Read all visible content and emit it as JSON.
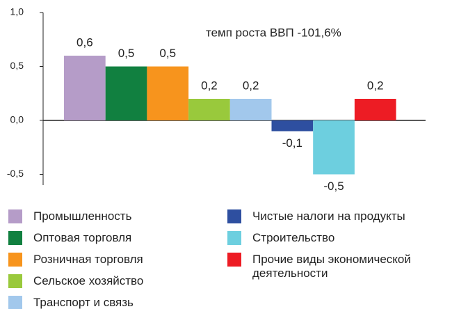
{
  "chart_data": {
    "type": "bar",
    "annotation": "темп  роста ВВП -101,6%",
    "ylim": [
      -0.6,
      1.0
    ],
    "yticks": [
      {
        "value": -0.5,
        "label": "-0,5"
      },
      {
        "value": 0,
        "label": "0,0"
      },
      {
        "value": 0.5,
        "label": "0,5"
      },
      {
        "value": 1.0,
        "label": "1,0"
      }
    ],
    "series": [
      {
        "name": "Промышленность",
        "color": "#b59cc8",
        "values": [
          0.6
        ],
        "value_labels": [
          "0,6"
        ]
      },
      {
        "name": "Оптовая торговля",
        "color": "#118040",
        "values": [
          0.5
        ],
        "value_labels": [
          "0,5"
        ]
      },
      {
        "name": "Розничная торговля",
        "color": "#f7941d",
        "values": [
          0.5
        ],
        "value_labels": [
          "0,5"
        ]
      },
      {
        "name": "Сельское хозяйство",
        "color": "#99c93c",
        "values": [
          0.2
        ],
        "value_labels": [
          "0,2"
        ]
      },
      {
        "name": "Транспорт и связь",
        "color": "#a2c8ec",
        "values": [
          0.2
        ],
        "value_labels": [
          "0,2"
        ]
      },
      {
        "name": "Чистые налоги на продукты",
        "color": "#2e4fa0",
        "values": [
          -0.1
        ],
        "value_labels": [
          "-0,1"
        ]
      },
      {
        "name": "Строительство",
        "color": "#6dcfdf",
        "values": [
          -0.5
        ],
        "value_labels": [
          "-0,5"
        ]
      },
      {
        "name": "Прочие виды экономической деятельности",
        "color": "#ed1c24",
        "values": [
          0.2
        ],
        "value_labels": [
          "0,2"
        ]
      }
    ]
  }
}
